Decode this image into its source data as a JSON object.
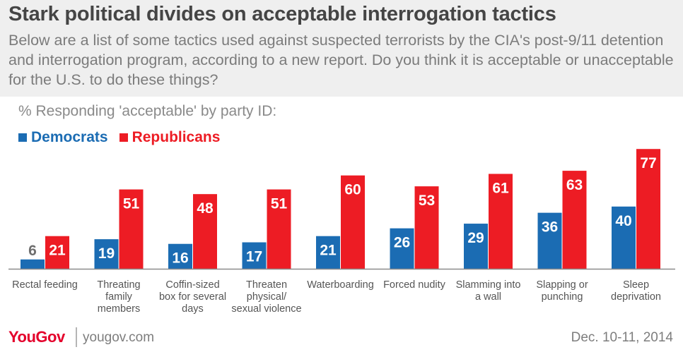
{
  "title": "Stark political divides on acceptable interrogation tactics",
  "subtitle": "Below are a list of some tactics used against suspected terrorists by the CIA's post-9/11 detention and interrogation program, according to a new report. Do you think it is acceptable or unacceptable for the U.S. to do these things?",
  "responding_label": "% Responding 'acceptable' by party ID:",
  "colors": {
    "democrats": "#1b6cb3",
    "republicans": "#ed1c24",
    "axis": "#8c8c8c",
    "label": "#555555"
  },
  "chart_data": {
    "type": "bar",
    "title": "Stark political divides on acceptable interrogation tactics",
    "ylabel": "% Responding 'acceptable' by party ID",
    "ylim": [
      0,
      80
    ],
    "legend": "top-left",
    "categories": [
      [
        "Rectal feeding"
      ],
      [
        "Threating",
        "family",
        "members"
      ],
      [
        "Coffin-sized",
        "box for several",
        "days"
      ],
      [
        "Threaten",
        "physical/",
        "sexual violence"
      ],
      [
        "Waterboarding"
      ],
      [
        "Forced nudity"
      ],
      [
        "Slamming into",
        "a wall"
      ],
      [
        "Slapping or",
        "punching"
      ],
      [
        "Sleep",
        "deprivation"
      ]
    ],
    "series": [
      {
        "name": "Democrats",
        "values": [
          6,
          19,
          16,
          17,
          21,
          26,
          29,
          36,
          40
        ]
      },
      {
        "name": "Republicans",
        "values": [
          21,
          51,
          48,
          51,
          60,
          53,
          61,
          63,
          77
        ]
      }
    ]
  },
  "footer": {
    "logo": "YouGov",
    "site": "yougov.com",
    "date": "Dec. 10-11, 2014"
  }
}
